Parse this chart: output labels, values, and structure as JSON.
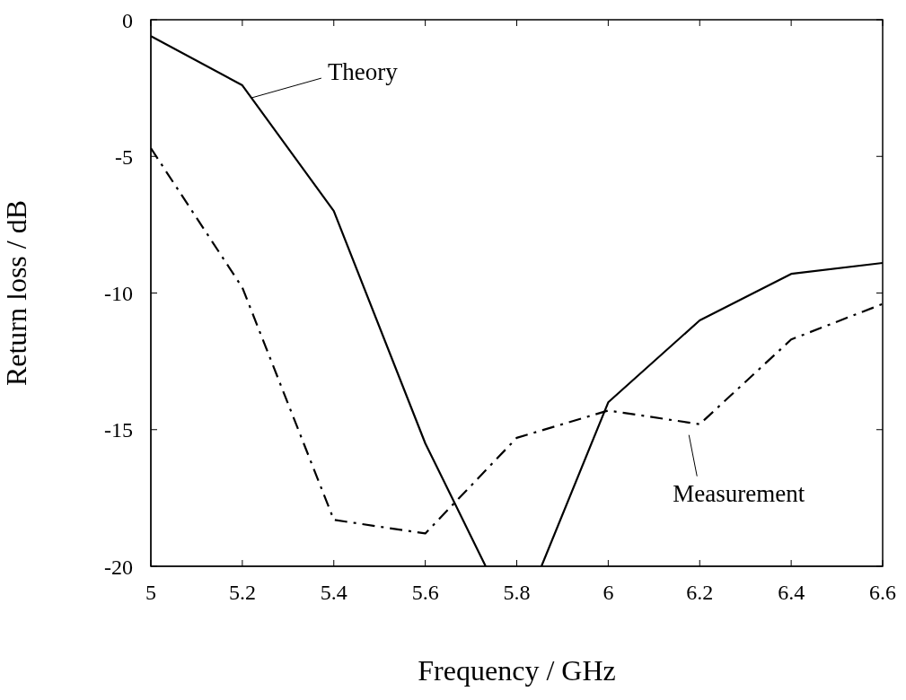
{
  "chart_data": {
    "type": "line",
    "xlabel": "Frequency / GHz",
    "ylabel": "Return loss / dB",
    "series": [
      {
        "name": "Theory",
        "color": "#000000",
        "line_style": "solid",
        "x": [
          5,
          5.2,
          5.4,
          5.6,
          5.732,
          5.8,
          5.854,
          6,
          6.2,
          6.4,
          6.6
        ],
        "values": [
          -0.6,
          -2.4,
          -7.0,
          -15.5,
          -20,
          null,
          -20,
          -14.0,
          -11.0,
          -9.3,
          -8.9
        ]
      },
      {
        "name": "Measurement",
        "color": "#000000",
        "line_style": "dashed",
        "x": [
          5,
          5.2,
          5.4,
          5.6,
          5.8,
          6,
          6.2,
          6.4,
          6.6
        ],
        "values": [
          -4.7,
          -9.8,
          -18.3,
          -18.8,
          -15.3,
          -14.3,
          -14.8,
          -11.7,
          -10.4
        ]
      }
    ],
    "xlim": [
      5,
      6.6
    ],
    "xticks": [
      5,
      5.2,
      5.4,
      5.6,
      5.8,
      6,
      6.2,
      6.4,
      6.6
    ],
    "ylim": [
      -20,
      0
    ],
    "yticks": [
      -20,
      -15,
      -10,
      -5,
      0
    ],
    "marker": "none"
  }
}
